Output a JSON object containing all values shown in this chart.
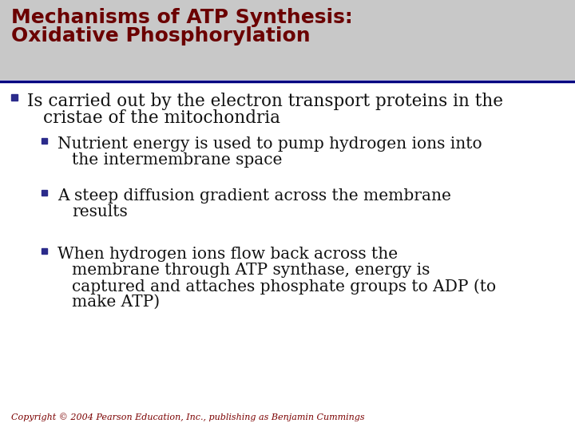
{
  "title_line1": "Mechanisms of ATP Synthesis:",
  "title_line2": "Oxidative Phosphorylation",
  "title_color": "#6B0000",
  "title_bg_color": "#C8C8C8",
  "separator_color": "#000080",
  "bg_color": "#FFFFFF",
  "bullet_color": "#2B2B8B",
  "text_color": "#111111",
  "copyright": "Copyright © 2004 Pearson Education, Inc., publishing as Benjamin Cummings",
  "copyright_color": "#7B0000",
  "bullet1_line1": "Is carried out by the electron transport proteins in the",
  "bullet1_line2": "cristae of the mitochondria",
  "sub1_line1": "Nutrient energy is used to pump hydrogen ions into",
  "sub1_line2": "the intermembrane space",
  "sub2_line1": "A steep diffusion gradient across the membrane",
  "sub2_line2": "results",
  "sub3_line1": "When hydrogen ions flow back across the",
  "sub3_line2": "membrane through ATP synthase, energy is",
  "sub3_line3": "captured and attaches phosphate groups to ADP (to",
  "sub3_line4": "make ATP)",
  "title_fontsize": 18,
  "bullet_fontsize": 15.5,
  "sub_bullet_fontsize": 14.5,
  "copyright_fontsize": 8
}
